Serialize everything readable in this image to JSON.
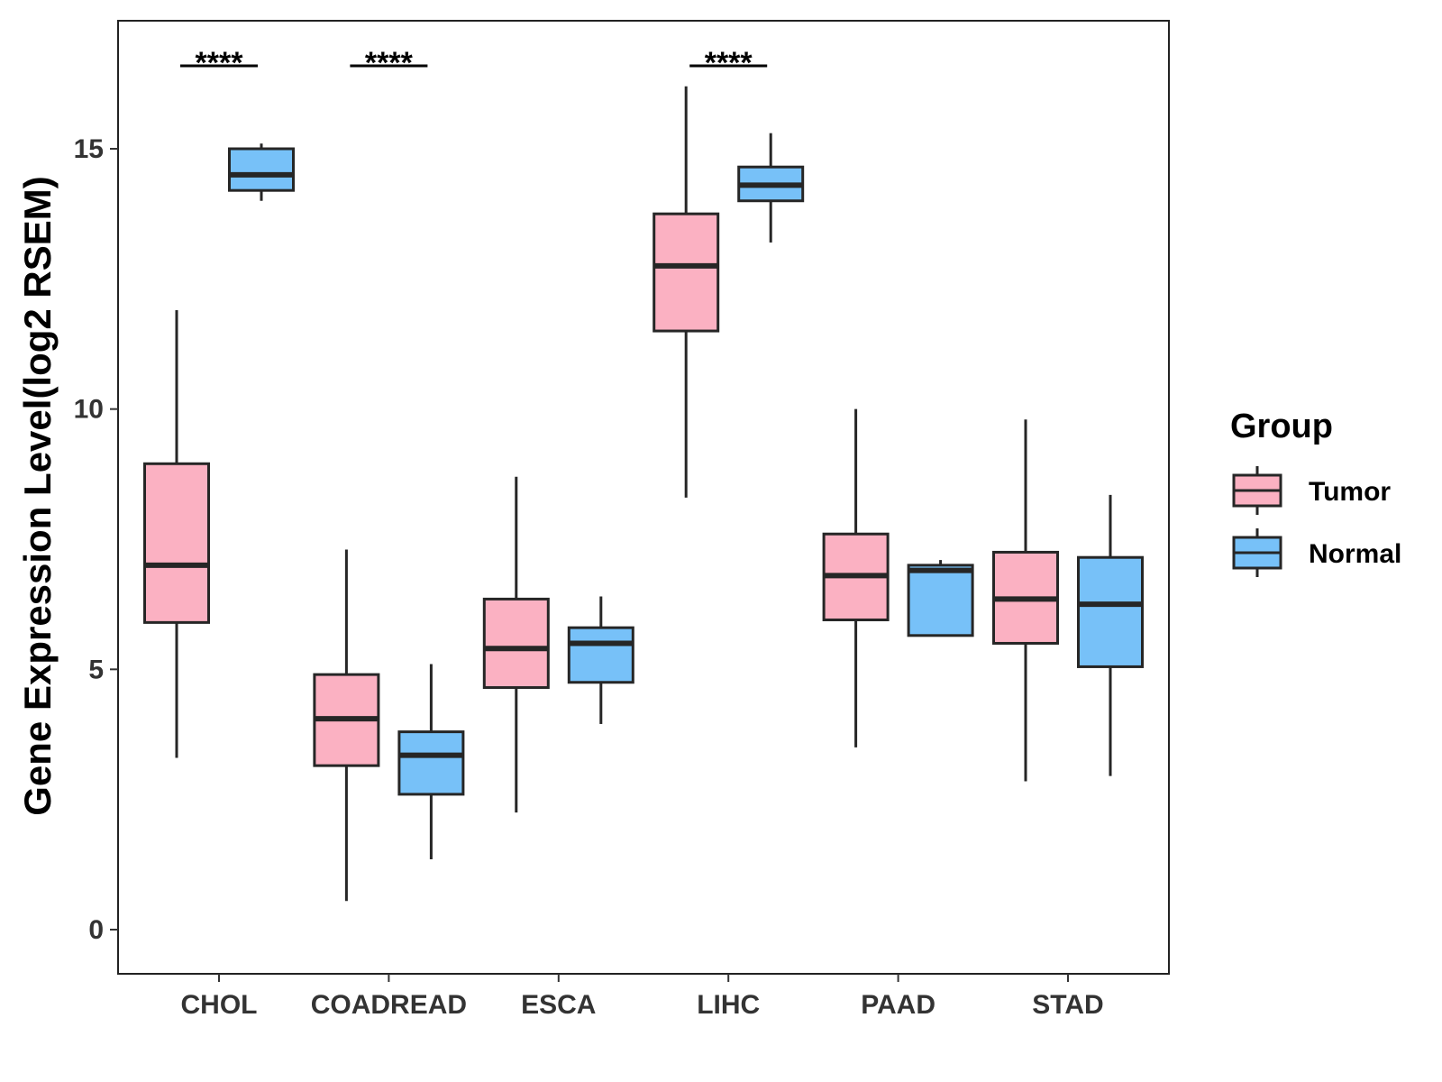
{
  "chart_data": {
    "type": "box",
    "title": "",
    "xlabel": "",
    "ylabel": "Gene Expression Level(log2 RSEM)",
    "ylim": [
      -0.8,
      17.5
    ],
    "yticks": [
      0,
      5,
      10,
      15
    ],
    "grid": false,
    "categories": [
      "CHOL",
      "COADREAD",
      "ESCA",
      "LIHC",
      "PAAD",
      "STAD"
    ],
    "legend": {
      "title": "Group",
      "position": "right",
      "entries": [
        {
          "name": "Tumor",
          "color": "#FBB1C2"
        },
        {
          "name": "Normal",
          "color": "#77C1F8"
        }
      ]
    },
    "series": [
      {
        "name": "Tumor",
        "color": "#FBB1C2",
        "boxes": [
          {
            "category": "CHOL",
            "min": 3.3,
            "q1": 5.9,
            "median": 7.0,
            "q3": 8.95,
            "max": 11.9
          },
          {
            "category": "COADREAD",
            "min": 0.55,
            "q1": 3.15,
            "median": 4.05,
            "q3": 4.9,
            "max": 7.3
          },
          {
            "category": "ESCA",
            "min": 2.25,
            "q1": 4.65,
            "median": 5.4,
            "q3": 6.35,
            "max": 8.7
          },
          {
            "category": "LIHC",
            "min": 8.3,
            "q1": 11.5,
            "median": 12.75,
            "q3": 13.75,
            "max": 16.2
          },
          {
            "category": "PAAD",
            "min": 3.5,
            "q1": 5.95,
            "median": 6.8,
            "q3": 7.6,
            "max": 10.0
          },
          {
            "category": "STAD",
            "min": 2.85,
            "q1": 5.5,
            "median": 6.35,
            "q3": 7.25,
            "max": 9.8
          }
        ]
      },
      {
        "name": "Normal",
        "color": "#77C1F8",
        "boxes": [
          {
            "category": "CHOL",
            "min": 14.0,
            "q1": 14.2,
            "median": 14.5,
            "q3": 15.0,
            "max": 15.1
          },
          {
            "category": "COADREAD",
            "min": 1.35,
            "q1": 2.6,
            "median": 3.35,
            "q3": 3.8,
            "max": 5.1
          },
          {
            "category": "ESCA",
            "min": 3.95,
            "q1": 4.75,
            "median": 5.5,
            "q3": 5.8,
            "max": 6.4
          },
          {
            "category": "LIHC",
            "min": 13.2,
            "q1": 14.0,
            "median": 14.3,
            "q3": 14.65,
            "max": 15.3
          },
          {
            "category": "PAAD",
            "min": 5.65,
            "q1": 5.65,
            "median": 6.9,
            "q3": 7.0,
            "max": 7.1
          },
          {
            "category": "STAD",
            "min": 2.95,
            "q1": 5.05,
            "median": 6.25,
            "q3": 7.15,
            "max": 8.35
          }
        ]
      }
    ],
    "significance": [
      {
        "category": "CHOL",
        "label": "****"
      },
      {
        "category": "COADREAD",
        "label": "****"
      },
      {
        "category": "LIHC",
        "label": "****"
      }
    ]
  }
}
